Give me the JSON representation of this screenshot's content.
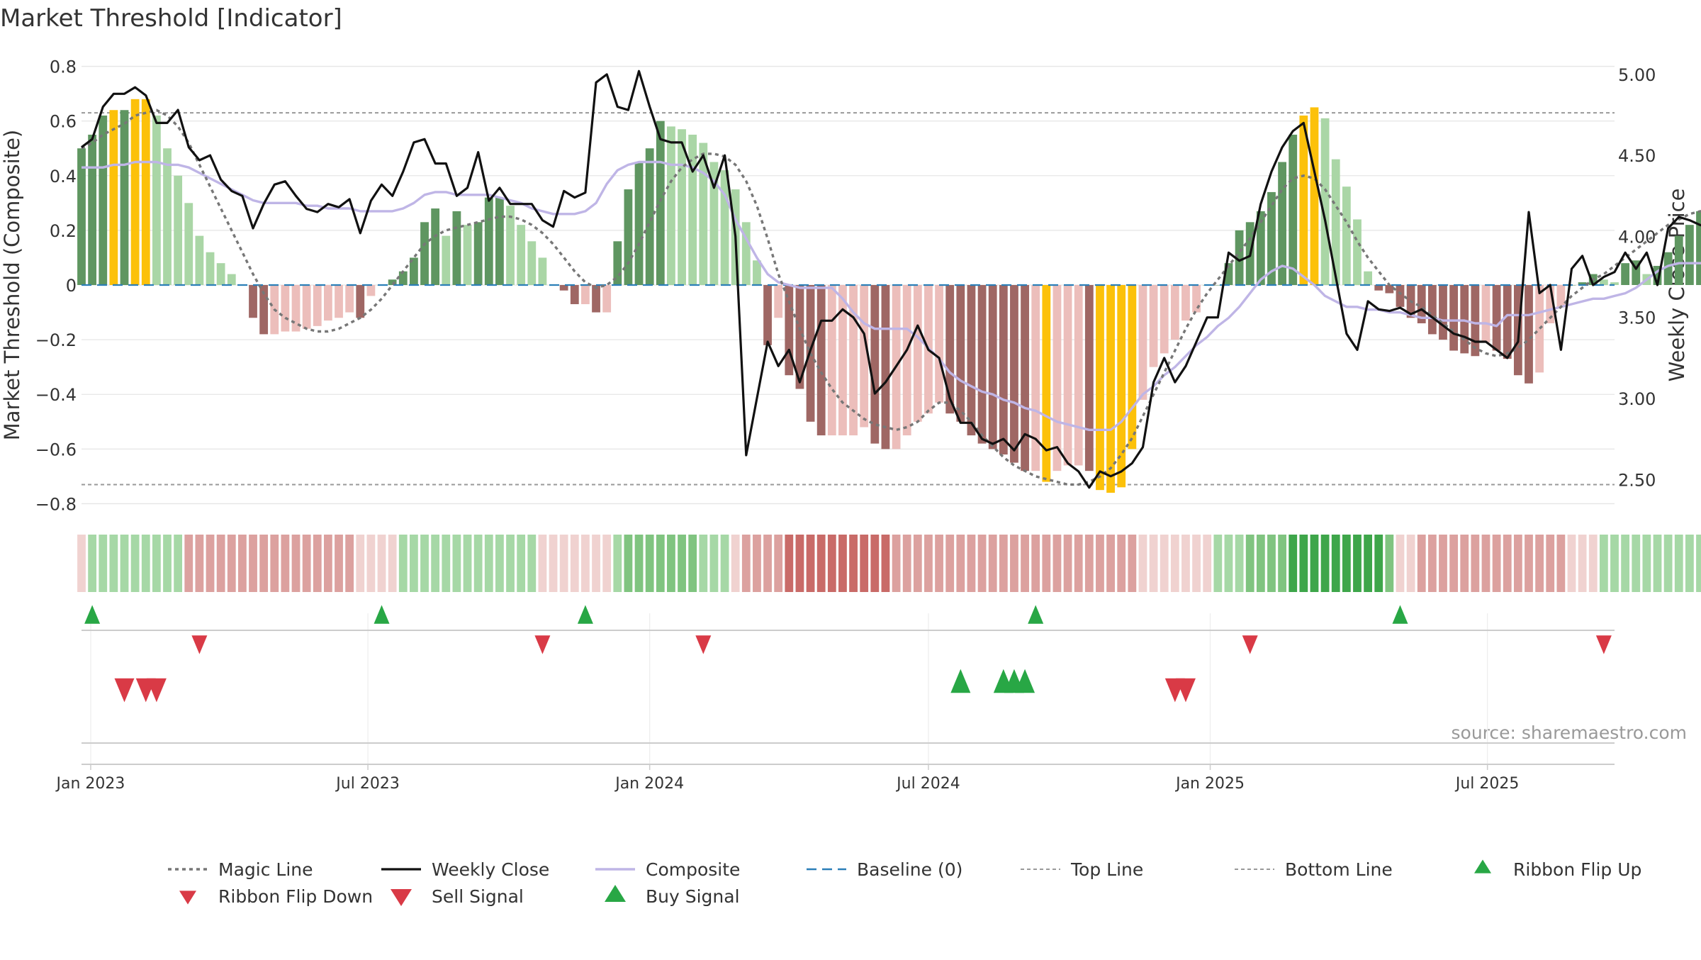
{
  "colors": {
    "grid": "#e6e6e6",
    "axis": "#cccccc",
    "text": "#333333",
    "mid_green": "#aad6a6",
    "dark_green": "#5f9661",
    "light_red": "#ecbebb",
    "dark_red": "#9f6764",
    "gold": "#fcc10a",
    "weekly_close": "#111111",
    "magic_line": "#777777",
    "composite": "#bfb5e6",
    "baseline": "#2c7fb8",
    "threshold_line": "#999999",
    "buy_green": "#28a745",
    "sell_red": "#d93a46"
  },
  "chart_data": {
    "type": "bar",
    "title": "Market Threshold [Indicator]",
    "source": "source: sharemaestro.com",
    "ylabel": "Market Threshold (Composite)",
    "y2label": "Weekly Close Price",
    "ylim": [
      -0.83,
      0.83
    ],
    "y2lim": [
      2.3,
      5.1
    ],
    "y_ticks": [
      -0.8,
      -0.6,
      -0.4,
      -0.2,
      0,
      0.2,
      0.4,
      0.6,
      0.8
    ],
    "y_tick_labels": [
      "−0.8",
      "−0.6",
      "−0.4",
      "−0.2",
      "0",
      "0.2",
      "0.4",
      "0.6",
      "0.8"
    ],
    "y2_ticks": [
      2.5,
      3.0,
      3.5,
      4.0,
      4.5,
      5.0
    ],
    "y2_tick_labels": [
      "2.50",
      "3.00",
      "3.50",
      "4.00",
      "4.50",
      "5.00"
    ],
    "x_start": "2022-12-26",
    "x_end": "2025-09-22",
    "x_ticks": [
      {
        "date": "2023-01-01",
        "label": "Jan 2023"
      },
      {
        "date": "2023-07-01",
        "label": "Jul 2023"
      },
      {
        "date": "2024-01-01",
        "label": "Jan 2024"
      },
      {
        "date": "2024-07-01",
        "label": "Jul 2024"
      },
      {
        "date": "2025-01-01",
        "label": "Jan 2025"
      },
      {
        "date": "2025-07-01",
        "label": "Jul 2025"
      }
    ],
    "top_line": 0.63,
    "bottom_line": -0.73,
    "start_week": "2022-12-26",
    "composite_bars": [
      0.5,
      0.55,
      0.62,
      0.64,
      0.64,
      0.68,
      0.68,
      0.62,
      0.5,
      0.4,
      0.3,
      0.18,
      0.12,
      0.08,
      0.04,
      0.0,
      -0.12,
      -0.18,
      -0.18,
      -0.17,
      -0.17,
      -0.16,
      -0.15,
      -0.13,
      -0.12,
      -0.1,
      -0.12,
      -0.04,
      0.0,
      0.02,
      0.05,
      0.1,
      0.23,
      0.28,
      0.18,
      0.27,
      0.22,
      0.23,
      0.32,
      0.32,
      0.29,
      0.22,
      0.16,
      0.1,
      0.0,
      -0.02,
      -0.07,
      -0.07,
      -0.1,
      -0.1,
      0.16,
      0.35,
      0.45,
      0.5,
      0.6,
      0.58,
      0.57,
      0.55,
      0.52,
      0.45,
      0.42,
      0.35,
      0.23,
      0.09,
      -0.22,
      -0.12,
      -0.33,
      -0.38,
      -0.5,
      -0.55,
      -0.55,
      -0.55,
      -0.55,
      -0.52,
      -0.58,
      -0.6,
      -0.6,
      -0.55,
      -0.5,
      -0.47,
      -0.43,
      -0.47,
      -0.5,
      -0.55,
      -0.58,
      -0.6,
      -0.62,
      -0.65,
      -0.68,
      -0.68,
      -0.72,
      -0.68,
      -0.66,
      -0.66,
      -0.68,
      -0.75,
      -0.76,
      -0.74,
      -0.6,
      -0.42,
      -0.3,
      -0.25,
      -0.2,
      -0.13,
      -0.1,
      0.0,
      0.0,
      0.08,
      0.2,
      0.23,
      0.27,
      0.34,
      0.45,
      0.55,
      0.62,
      0.65,
      0.61,
      0.46,
      0.36,
      0.24,
      0.05,
      -0.02,
      -0.03,
      -0.08,
      -0.12,
      -0.14,
      -0.18,
      -0.2,
      -0.24,
      -0.25,
      -0.26,
      -0.21,
      -0.24,
      -0.27,
      -0.33,
      -0.36,
      -0.32,
      -0.14,
      -0.08,
      0.0,
      0.01,
      0.04,
      0.02,
      0.01,
      0.08,
      0.09,
      0.04,
      0.07,
      0.12,
      0.18,
      0.22,
      0.27,
      0.32,
      0.33,
      0.36,
      0.35,
      0.33,
      0.29,
      0.29,
      0.28,
      0.22,
      0.16,
      0.1
    ],
    "gold_weeks": [
      3,
      5,
      6,
      90,
      95,
      96,
      97,
      98,
      114,
      115
    ],
    "weekly_close": [
      4.55,
      4.6,
      4.8,
      4.88,
      4.88,
      4.92,
      4.87,
      4.7,
      4.7,
      4.78,
      4.55,
      4.47,
      4.5,
      4.35,
      4.28,
      4.25,
      4.05,
      4.2,
      4.32,
      4.34,
      4.25,
      4.17,
      4.15,
      4.2,
      4.18,
      4.23,
      4.02,
      4.22,
      4.32,
      4.25,
      4.4,
      4.58,
      4.6,
      4.45,
      4.45,
      4.25,
      4.3,
      4.52,
      4.22,
      4.3,
      4.2,
      4.2,
      4.2,
      4.1,
      4.06,
      4.28,
      4.24,
      4.27,
      4.95,
      5.0,
      4.8,
      4.78,
      5.02,
      4.8,
      4.6,
      4.58,
      4.58,
      4.4,
      4.5,
      4.3,
      4.5,
      4.0,
      2.65,
      3.0,
      3.35,
      3.2,
      3.3,
      3.1,
      3.3,
      3.48,
      3.48,
      3.55,
      3.5,
      3.4,
      3.03,
      3.1,
      3.2,
      3.3,
      3.45,
      3.3,
      3.25,
      3.0,
      2.85,
      2.85,
      2.75,
      2.72,
      2.75,
      2.68,
      2.78,
      2.75,
      2.68,
      2.7,
      2.6,
      2.55,
      2.45,
      2.55,
      2.52,
      2.55,
      2.6,
      2.7,
      3.1,
      3.25,
      3.1,
      3.2,
      3.35,
      3.5,
      3.5,
      3.9,
      3.85,
      3.88,
      4.2,
      4.4,
      4.55,
      4.65,
      4.7,
      4.4,
      4.1,
      3.75,
      3.4,
      3.3,
      3.6,
      3.55,
      3.54,
      3.56,
      3.52,
      3.55,
      3.5,
      3.45,
      3.4,
      3.38,
      3.35,
      3.35,
      3.3,
      3.25,
      3.35,
      4.15,
      3.65,
      3.7,
      3.3,
      3.8,
      3.88,
      3.7,
      3.75,
      3.78,
      3.9,
      3.8,
      3.9,
      3.7,
      4.05,
      4.12,
      4.1,
      4.07,
      4.05,
      4.1,
      4.02,
      4.05,
      3.98,
      3.98,
      3.95,
      3.92,
      3.95,
      3.98,
      4.0,
      3.85
    ],
    "magic_line": [
      0.5,
      0.52,
      0.55,
      0.57,
      0.59,
      0.62,
      0.63,
      0.64,
      0.62,
      0.58,
      0.52,
      0.44,
      0.36,
      0.28,
      0.2,
      0.12,
      0.04,
      -0.03,
      -0.09,
      -0.12,
      -0.14,
      -0.16,
      -0.17,
      -0.17,
      -0.16,
      -0.14,
      -0.12,
      -0.09,
      -0.05,
      0.0,
      0.05,
      0.1,
      0.15,
      0.18,
      0.2,
      0.21,
      0.22,
      0.23,
      0.24,
      0.25,
      0.25,
      0.24,
      0.22,
      0.19,
      0.15,
      0.1,
      0.05,
      0.01,
      -0.01,
      0.0,
      0.03,
      0.08,
      0.15,
      0.23,
      0.31,
      0.38,
      0.43,
      0.46,
      0.48,
      0.48,
      0.47,
      0.44,
      0.38,
      0.29,
      0.17,
      0.04,
      -0.06,
      -0.16,
      -0.25,
      -0.32,
      -0.38,
      -0.43,
      -0.46,
      -0.49,
      -0.51,
      -0.52,
      -0.53,
      -0.52,
      -0.5,
      -0.46,
      -0.43,
      -0.43,
      -0.46,
      -0.5,
      -0.55,
      -0.59,
      -0.63,
      -0.66,
      -0.68,
      -0.7,
      -0.71,
      -0.72,
      -0.73,
      -0.73,
      -0.72,
      -0.7,
      -0.67,
      -0.62,
      -0.56,
      -0.48,
      -0.4,
      -0.32,
      -0.24,
      -0.16,
      -0.09,
      -0.03,
      0.02,
      0.07,
      0.12,
      0.17,
      0.23,
      0.29,
      0.35,
      0.39,
      0.4,
      0.39,
      0.35,
      0.29,
      0.23,
      0.16,
      0.1,
      0.05,
      0.0,
      -0.03,
      -0.06,
      -0.08,
      -0.11,
      -0.14,
      -0.17,
      -0.2,
      -0.23,
      -0.25,
      -0.26,
      -0.25,
      -0.23,
      -0.2,
      -0.16,
      -0.12,
      -0.08,
      -0.04,
      -0.01,
      0.02,
      0.04,
      0.07,
      0.1,
      0.13,
      0.16,
      0.19,
      0.22,
      0.24,
      0.26,
      0.27,
      0.27,
      0.27,
      0.26,
      0.25,
      0.23,
      0.22,
      0.2
    ],
    "composite_line": [
      0.43,
      0.43,
      0.43,
      0.44,
      0.44,
      0.45,
      0.45,
      0.45,
      0.44,
      0.44,
      0.43,
      0.41,
      0.39,
      0.37,
      0.35,
      0.33,
      0.31,
      0.3,
      0.3,
      0.3,
      0.3,
      0.29,
      0.29,
      0.28,
      0.28,
      0.28,
      0.27,
      0.27,
      0.27,
      0.27,
      0.28,
      0.3,
      0.33,
      0.34,
      0.34,
      0.33,
      0.33,
      0.33,
      0.33,
      0.32,
      0.31,
      0.3,
      0.28,
      0.27,
      0.26,
      0.26,
      0.26,
      0.27,
      0.3,
      0.37,
      0.42,
      0.44,
      0.45,
      0.45,
      0.45,
      0.44,
      0.44,
      0.43,
      0.41,
      0.38,
      0.33,
      0.24,
      0.17,
      0.1,
      0.04,
      0.01,
      0.0,
      -0.01,
      -0.01,
      -0.01,
      -0.01,
      -0.05,
      -0.1,
      -0.14,
      -0.16,
      -0.16,
      -0.16,
      -0.16,
      -0.19,
      -0.23,
      -0.27,
      -0.32,
      -0.35,
      -0.37,
      -0.39,
      -0.4,
      -0.42,
      -0.43,
      -0.45,
      -0.46,
      -0.48,
      -0.5,
      -0.51,
      -0.52,
      -0.53,
      -0.53,
      -0.53,
      -0.5,
      -0.45,
      -0.4,
      -0.37,
      -0.33,
      -0.3,
      -0.26,
      -0.22,
      -0.19,
      -0.15,
      -0.12,
      -0.08,
      -0.03,
      0.02,
      0.05,
      0.07,
      0.06,
      0.03,
      0.0,
      -0.04,
      -0.06,
      -0.08,
      -0.08,
      -0.09,
      -0.09,
      -0.1,
      -0.1,
      -0.11,
      -0.12,
      -0.12,
      -0.13,
      -0.13,
      -0.13,
      -0.14,
      -0.14,
      -0.15,
      -0.11,
      -0.11,
      -0.11,
      -0.1,
      -0.09,
      -0.08,
      -0.07,
      -0.06,
      -0.05,
      -0.05,
      -0.04,
      -0.03,
      -0.01,
      0.02,
      0.05,
      0.07,
      0.08,
      0.08,
      0.08,
      0.08,
      0.08,
      0.08,
      0.08,
      0.09,
      0.09,
      0.09
    ],
    "ribbon_levels": [
      -1,
      1,
      1,
      1,
      1,
      1,
      1,
      1,
      1,
      1,
      -2,
      -2,
      -2,
      -2,
      -2,
      -2,
      -2,
      -2,
      -2,
      -2,
      -2,
      -2,
      -2,
      -2,
      -2,
      -2,
      -1,
      -1,
      -1,
      -1,
      1,
      1,
      1,
      1,
      1,
      1,
      1,
      1,
      1,
      1,
      1,
      1,
      1,
      -1,
      -1,
      -1,
      -1,
      -1,
      -1,
      -1,
      1,
      2,
      2,
      2,
      2,
      2,
      2,
      2,
      1,
      1,
      1,
      -1,
      -2,
      -2,
      -2,
      -2,
      -3,
      -3,
      -3,
      -3,
      -3,
      -3,
      -3,
      -3,
      -3,
      -3,
      -2,
      -2,
      -2,
      -2,
      -2,
      -2,
      -2,
      -2,
      -2,
      -2,
      -2,
      -2,
      -2,
      -2,
      -2,
      -2,
      -2,
      -2,
      -2,
      -2,
      -2,
      -2,
      -2,
      -1,
      -1,
      -1,
      -1,
      -1,
      -1,
      -1,
      1,
      1,
      1,
      2,
      2,
      2,
      2,
      3,
      3,
      3,
      3,
      3,
      3,
      3,
      3,
      3,
      2,
      -1,
      -1,
      -2,
      -2,
      -2,
      -2,
      -2,
      -2,
      -2,
      -2,
      -2,
      -2,
      -2,
      -2,
      -2,
      -2,
      -1,
      -1,
      -1,
      1,
      1,
      1,
      1,
      1,
      1,
      1,
      1,
      1,
      1,
      1,
      1,
      1,
      1,
      1,
      1,
      1,
      1,
      1,
      1,
      1,
      1,
      1,
      1,
      1,
      1,
      -1
    ],
    "ribbon_flip_up": [
      "2023-01-02",
      "2023-07-10",
      "2023-11-20",
      "2024-09-09",
      "2025-05-05"
    ],
    "ribbon_flip_down": [
      "2023-03-13",
      "2023-10-23",
      "2024-02-05",
      "2025-01-27",
      "2025-09-15"
    ],
    "sell_signal": [
      "2023-01-23",
      "2023-02-06",
      "2023-02-13",
      "2024-12-09",
      "2024-12-16"
    ],
    "buy_signal": [
      "2024-07-22",
      "2024-08-19",
      "2024-08-26",
      "2024-09-02"
    ],
    "legend_placement": "bottom",
    "legend": [
      {
        "label": "Magic Line",
        "kind": "magic"
      },
      {
        "label": "Weekly Close",
        "kind": "close"
      },
      {
        "label": "Composite",
        "kind": "composite"
      },
      {
        "label": "Baseline (0)",
        "kind": "baseline"
      },
      {
        "label": "Top Line",
        "kind": "threshold"
      },
      {
        "label": "Bottom Line",
        "kind": "threshold"
      },
      {
        "label": "Ribbon Flip Up",
        "kind": "flip_up"
      },
      {
        "label": "Ribbon Flip Down",
        "kind": "flip_down"
      },
      {
        "label": "Sell Signal",
        "kind": "sell"
      },
      {
        "label": "Buy Signal",
        "kind": "buy"
      }
    ]
  }
}
